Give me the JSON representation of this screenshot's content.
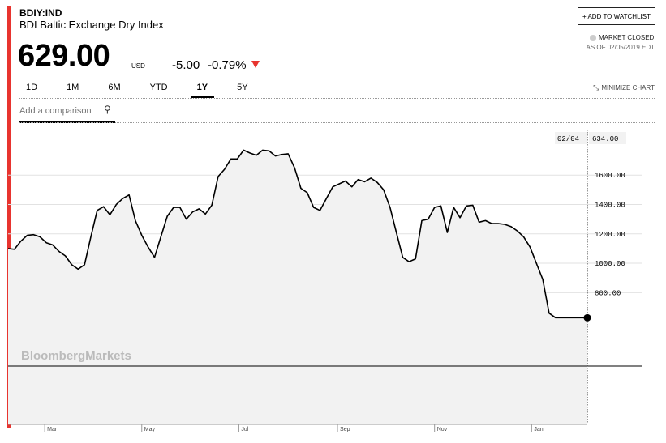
{
  "header": {
    "ticker": "BDIY:IND",
    "name": "BDI Baltic Exchange Dry Index",
    "price": "629.00",
    "currency": "USD",
    "change": "-5.00",
    "change_pct": "-0.79%",
    "change_color": "#e8342f",
    "watchlist_label": "+ ADD TO WATCHLIST",
    "market_status": "MARKET CLOSED",
    "as_of": "AS OF 02/05/2019 EDT"
  },
  "tabs": [
    {
      "label": "1D",
      "active": false
    },
    {
      "label": "1M",
      "active": false
    },
    {
      "label": "6M",
      "active": false
    },
    {
      "label": "YTD",
      "active": false
    },
    {
      "label": "1Y",
      "active": true
    },
    {
      "label": "5Y",
      "active": false
    }
  ],
  "minimize_label": "MINIMIZE CHART",
  "compare_placeholder": "Add a comparison",
  "chart_data": {
    "type": "area",
    "watermark": "BloombergMarkets",
    "months": [
      "Mar",
      "May",
      "Jul",
      "Sep",
      "Nov",
      "Jan"
    ],
    "y_ticks": [
      "800.00",
      "1000.00",
      "1200.00",
      "1400.00",
      "1600.00"
    ],
    "ylim": [
      300,
      1910
    ],
    "grid": true,
    "hover_date": "02/04",
    "hover_value": "634.00",
    "line_color": "#000000",
    "fill_color": "#f2f2f2",
    "last_point": {
      "date": "2019-02-05",
      "value": 629
    },
    "series": [
      {
        "x": [
          "2018-02-06",
          "2018-02-10",
          "2018-02-14",
          "2018-02-18",
          "2018-02-22",
          "2018-02-26",
          "2018-03-02",
          "2018-03-06",
          "2018-03-10",
          "2018-03-14",
          "2018-03-18",
          "2018-03-22",
          "2018-03-26",
          "2018-03-30",
          "2018-04-03",
          "2018-04-07",
          "2018-04-11",
          "2018-04-15",
          "2018-04-19",
          "2018-04-23",
          "2018-04-27",
          "2018-05-01",
          "2018-05-05",
          "2018-05-09",
          "2018-05-13",
          "2018-05-17",
          "2018-05-21",
          "2018-05-25",
          "2018-05-29",
          "2018-06-02",
          "2018-06-06",
          "2018-06-10",
          "2018-06-14",
          "2018-06-18",
          "2018-06-22",
          "2018-06-26",
          "2018-06-30",
          "2018-07-04",
          "2018-07-08",
          "2018-07-12",
          "2018-07-16",
          "2018-07-20",
          "2018-07-24",
          "2018-07-28",
          "2018-08-01",
          "2018-08-05",
          "2018-08-09",
          "2018-08-13",
          "2018-08-17",
          "2018-08-21",
          "2018-08-25",
          "2018-08-29",
          "2018-09-02",
          "2018-09-06",
          "2018-09-10",
          "2018-09-14",
          "2018-09-18",
          "2018-09-22",
          "2018-09-26",
          "2018-09-30",
          "2018-10-04",
          "2018-10-08",
          "2018-10-12",
          "2018-10-16",
          "2018-10-20",
          "2018-10-24",
          "2018-10-28",
          "2018-11-01",
          "2018-11-05",
          "2018-11-09",
          "2018-11-13",
          "2018-11-17",
          "2018-11-21",
          "2018-11-25",
          "2018-11-29",
          "2018-12-03",
          "2018-12-07",
          "2018-12-11",
          "2018-12-15",
          "2018-12-19",
          "2018-12-23",
          "2018-12-27",
          "2018-12-31",
          "2019-01-04",
          "2019-01-08",
          "2019-01-12",
          "2019-01-16",
          "2019-01-20",
          "2019-01-24",
          "2019-01-28",
          "2019-02-01",
          "2019-02-05"
        ],
        "y": [
          1100,
          1095,
          1150,
          1190,
          1195,
          1180,
          1140,
          1125,
          1080,
          1050,
          990,
          960,
          990,
          1180,
          1360,
          1385,
          1330,
          1400,
          1440,
          1465,
          1290,
          1190,
          1110,
          1040,
          1180,
          1320,
          1380,
          1380,
          1300,
          1350,
          1370,
          1335,
          1395,
          1590,
          1640,
          1710,
          1710,
          1770,
          1750,
          1735,
          1770,
          1765,
          1730,
          1740,
          1745,
          1650,
          1510,
          1480,
          1380,
          1360,
          1440,
          1520,
          1540,
          1560,
          1520,
          1570,
          1555,
          1580,
          1550,
          1500,
          1380,
          1210,
          1040,
          1010,
          1030,
          1290,
          1300,
          1380,
          1390,
          1210,
          1380,
          1310,
          1390,
          1395,
          1280,
          1290,
          1270,
          1270,
          1265,
          1250,
          1220,
          1180,
          1110,
          1000,
          890,
          660,
          629,
          629,
          629,
          629,
          629,
          629
        ]
      }
    ]
  }
}
